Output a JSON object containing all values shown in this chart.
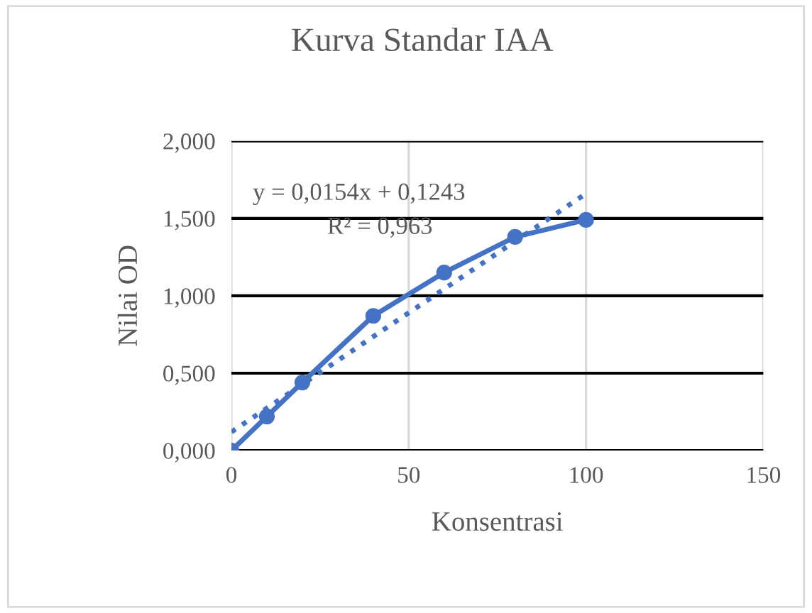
{
  "chart_data": {
    "type": "line",
    "title": "Kurva Standar IAA",
    "xlabel": "Konsentrasi",
    "ylabel": "Nilai OD",
    "x": [
      0,
      10,
      20,
      40,
      60,
      80,
      100
    ],
    "series": [
      {
        "color": "#4472c4",
        "values": [
          0.0,
          0.22,
          0.44,
          0.87,
          1.15,
          1.38,
          1.49
        ],
        "marker": "circle",
        "line_style": "solid"
      },
      {
        "color": "#4472c4",
        "x": [
          0,
          100
        ],
        "values": [
          0.12,
          1.66
        ],
        "marker": "none",
        "line_style": "dotted"
      }
    ],
    "annotations": [
      "y = 0,0154x + 0,1243",
      "R² = 0,963"
    ],
    "xlim": [
      0,
      150
    ],
    "xticks": [
      0,
      50,
      100,
      150
    ],
    "ylim": [
      0,
      2
    ],
    "yticks": [
      {
        "value": 0,
        "label": "0,000"
      },
      {
        "value": 0.5,
        "label": "0,500"
      },
      {
        "value": 1,
        "label": "1,000"
      },
      {
        "value": 1.5,
        "label": "1,500"
      },
      {
        "value": 2,
        "label": "2,000"
      }
    ],
    "grid": true,
    "legend": false
  }
}
